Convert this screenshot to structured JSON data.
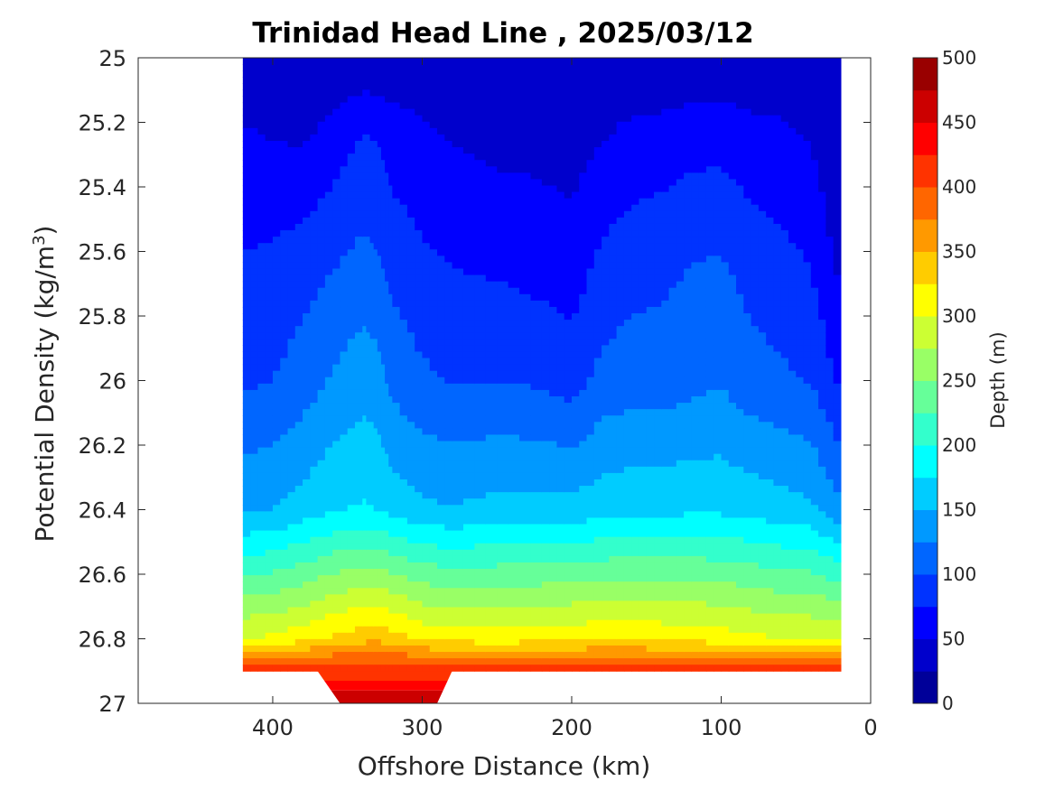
{
  "chart_data": {
    "type": "filled-contour",
    "title": "Trinidad Head Line , 2025/03/12",
    "xlabel": "Offshore Distance (km)",
    "ylabel_main": "Potential Density (kg/m",
    "ylabel_sup": "3",
    "ylabel_end": ")",
    "colorbar_label": "Depth (m)",
    "x_ticks": [
      "400",
      "300",
      "200",
      "100",
      "0"
    ],
    "x_tick_values": [
      400,
      300,
      200,
      100,
      0
    ],
    "xlim": [
      490,
      0
    ],
    "xaxis_reversed": true,
    "y_ticks": [
      "25",
      "25.2",
      "25.4",
      "25.6",
      "25.8",
      "26",
      "26.2",
      "26.4",
      "26.6",
      "26.8",
      "27"
    ],
    "y_tick_values": [
      25,
      25.2,
      25.4,
      25.6,
      25.8,
      26,
      26.2,
      26.4,
      26.6,
      26.8,
      27
    ],
    "ylim": [
      25,
      27
    ],
    "yaxis_reversed": true,
    "colorbar_ticks": [
      "0",
      "50",
      "100",
      "150",
      "200",
      "250",
      "300",
      "350",
      "400",
      "450",
      "500"
    ],
    "colorbar_tick_values": [
      0,
      50,
      100,
      150,
      200,
      250,
      300,
      350,
      400,
      450,
      500
    ],
    "contour_step": 25,
    "colormap": "jet",
    "data_x_range_km": [
      420,
      20
    ],
    "series": [
      {
        "x": [
          420,
          400,
          380,
          360,
          340,
          330,
          320,
          300,
          280,
          250,
          220,
          200,
          180,
          160,
          140,
          120,
          100,
          80,
          60,
          40,
          20
        ],
        "isopycnal_depth_m": {
          "25.2": [
            50,
            45,
            42,
            55,
            72,
            70,
            60,
            52,
            45,
            40,
            40,
            38,
            45,
            52,
            55,
            60,
            62,
            55,
            52,
            45,
            25
          ],
          "25.6": [
            75,
            78,
            85,
            95,
            105,
            100,
            88,
            78,
            72,
            68,
            62,
            58,
            78,
            88,
            92,
            98,
            100,
            88,
            80,
            72,
            40
          ],
          "26.0": [
            95,
            100,
            112,
            128,
            140,
            135,
            118,
            105,
            98,
            100,
            96,
            88,
            108,
            112,
            112,
            118,
            122,
            110,
            105,
            98,
            70
          ],
          "26.4": [
            145,
            150,
            160,
            172,
            178,
            175,
            165,
            155,
            152,
            158,
            160,
            158,
            165,
            168,
            168,
            170,
            170,
            165,
            160,
            155,
            130
          ],
          "26.8": [
            300,
            305,
            315,
            330,
            340,
            345,
            335,
            320,
            315,
            312,
            315,
            318,
            320,
            320,
            318,
            315,
            312,
            305,
            300,
            300,
            300
          ]
        }
      }
    ]
  }
}
